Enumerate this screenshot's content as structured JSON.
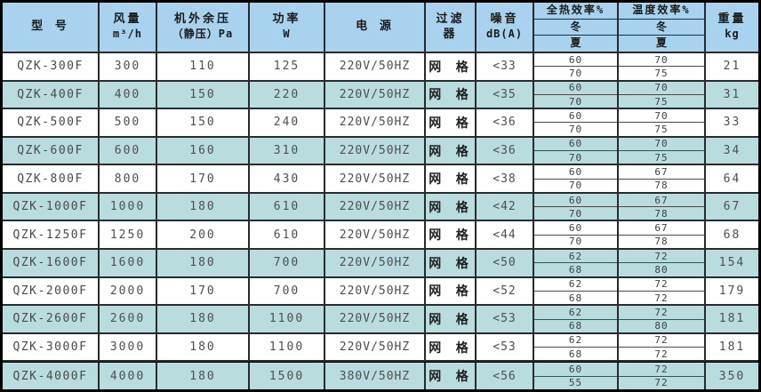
{
  "colors": {
    "header_bg": "#a9d2ef",
    "shaded_row_bg": "#b9dcdf",
    "row_bg": "#fefefe",
    "border": "#2a2a2a"
  },
  "table": {
    "header": {
      "model": "型  号",
      "airflow_title": "风量",
      "airflow_unit": "m³/h",
      "pressure_title": "机外余压",
      "pressure_unit": "（静压）Pa",
      "power_title": "功率",
      "power_unit": "W",
      "supply": "电  源",
      "filter_line1": "过滤",
      "filter_line2": "器",
      "noise_title": "噪音",
      "noise_unit": "dB(A)",
      "heat_eff_title": "全热效率%",
      "temp_eff_title": "温度效率%",
      "winter": "冬",
      "summer": "夏",
      "weight_title": "重量",
      "weight_unit": "kg"
    },
    "rows": [
      {
        "model": "QZK-300F",
        "airflow": "300",
        "pressure": "110",
        "power": "125",
        "supply": "220V/50HZ",
        "filter": "网 格",
        "noise": "<33",
        "heat_winter": "60",
        "heat_summer": "70",
        "temp_winter": "70",
        "temp_summer": "75",
        "weight": "21"
      },
      {
        "model": "QZK-400F",
        "airflow": "400",
        "pressure": "150",
        "power": "220",
        "supply": "220V/50HZ",
        "filter": "网 格",
        "noise": "<35",
        "heat_winter": "60",
        "heat_summer": "70",
        "temp_winter": "70",
        "temp_summer": "75",
        "weight": "31"
      },
      {
        "model": "QZK-500F",
        "airflow": "500",
        "pressure": "150",
        "power": "240",
        "supply": "220V/50HZ",
        "filter": "网 格",
        "noise": "<36",
        "heat_winter": "60",
        "heat_summer": "70",
        "temp_winter": "70",
        "temp_summer": "75",
        "weight": "33"
      },
      {
        "model": "QZK-600F",
        "airflow": "600",
        "pressure": "160",
        "power": "310",
        "supply": "220V/50HZ",
        "filter": "网 格",
        "noise": "<36",
        "heat_winter": "60",
        "heat_summer": "70",
        "temp_winter": "70",
        "temp_summer": "75",
        "weight": "34"
      },
      {
        "model": "QZK-800F",
        "airflow": "800",
        "pressure": "170",
        "power": "430",
        "supply": "220V/50HZ",
        "filter": "网 格",
        "noise": "<38",
        "heat_winter": "60",
        "heat_summer": "70",
        "temp_winter": "67",
        "temp_summer": "78",
        "weight": "64"
      },
      {
        "model": "QZK-1000F",
        "airflow": "1000",
        "pressure": "180",
        "power": "610",
        "supply": "220V/50HZ",
        "filter": "网 格",
        "noise": "<42",
        "heat_winter": "60",
        "heat_summer": "70",
        "temp_winter": "67",
        "temp_summer": "78",
        "weight": "67"
      },
      {
        "model": "QZK-1250F",
        "airflow": "1250",
        "pressure": "200",
        "power": "610",
        "supply": "220V/50HZ",
        "filter": "网 格",
        "noise": "<44",
        "heat_winter": "60",
        "heat_summer": "70",
        "temp_winter": "67",
        "temp_summer": "78",
        "weight": "68"
      },
      {
        "model": "QZK-1600F",
        "airflow": "1600",
        "pressure": "180",
        "power": "700",
        "supply": "220V/50HZ",
        "filter": "网 格",
        "noise": "<50",
        "heat_winter": "62",
        "heat_summer": "68",
        "temp_winter": "72",
        "temp_summer": "80",
        "weight": "154"
      },
      {
        "model": "QZK-2000F",
        "airflow": "2000",
        "pressure": "170",
        "power": "700",
        "supply": "220V/50HZ",
        "filter": "网 格",
        "noise": "<52",
        "heat_winter": "62",
        "heat_summer": "68",
        "temp_winter": "72",
        "temp_summer": "72",
        "weight": "179"
      },
      {
        "model": "QZK-2600F",
        "airflow": "2600",
        "pressure": "180",
        "power": "1100",
        "supply": "220V/50HZ",
        "filter": "网 格",
        "noise": "<53",
        "heat_winter": "62",
        "heat_summer": "68",
        "temp_winter": "72",
        "temp_summer": "80",
        "weight": "181"
      },
      {
        "model": "QZK-3000F",
        "airflow": "3000",
        "pressure": "180",
        "power": "1100",
        "supply": "220V/50HZ",
        "filter": "网 格",
        "noise": "<53",
        "heat_winter": "62",
        "heat_summer": "68",
        "temp_winter": "72",
        "temp_summer": "72",
        "weight": "181"
      },
      {
        "model": "QZK-4000F",
        "airflow": "4000",
        "pressure": "180",
        "power": "1500",
        "supply": "380V/50HZ",
        "filter": "网 格",
        "noise": "<56",
        "heat_winter": "60",
        "heat_summer": "55",
        "temp_winter": "72",
        "temp_summer": "72",
        "weight": "350"
      }
    ]
  }
}
